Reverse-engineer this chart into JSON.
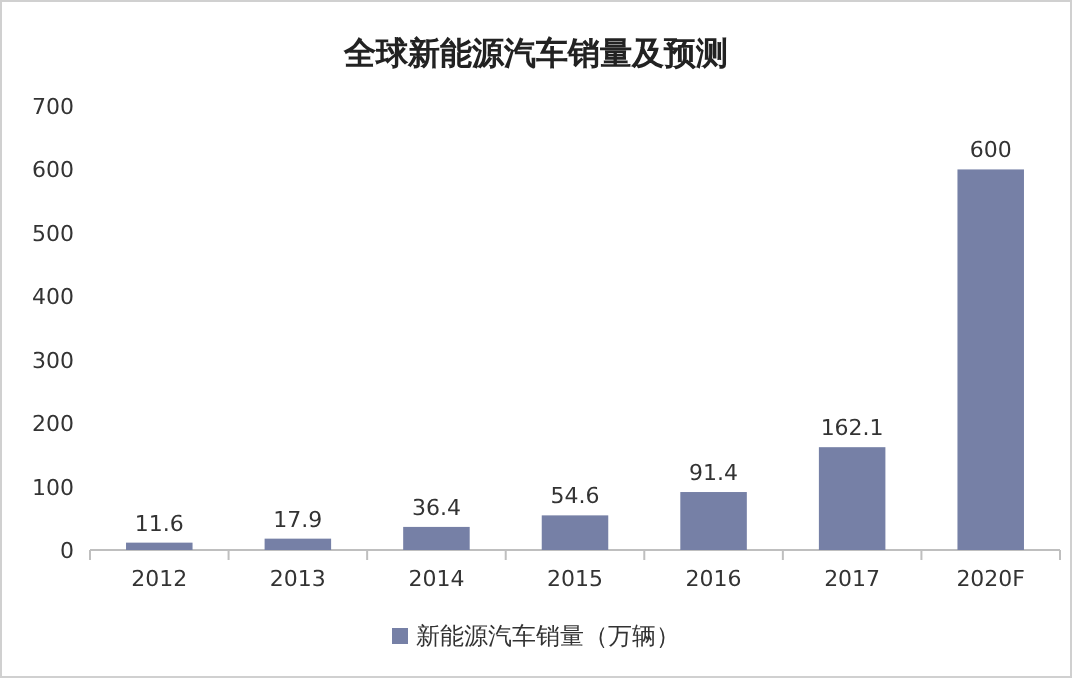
{
  "chart_data": {
    "type": "bar",
    "title": "全球新能源汽车销量及预测",
    "categories": [
      "2012",
      "2013",
      "2014",
      "2015",
      "2016",
      "2017",
      "2020F"
    ],
    "series": [
      {
        "name": "新能源汽车销量（万辆）",
        "color": "#7680a6",
        "values": [
          11.6,
          17.9,
          36.4,
          54.6,
          91.4,
          162.1,
          600
        ]
      }
    ],
    "ylim": [
      0,
      700
    ],
    "yticks": [
      0,
      100,
      200,
      300,
      400,
      500,
      600,
      700
    ],
    "data_labels": true,
    "legend": "bottom",
    "grid": false
  }
}
